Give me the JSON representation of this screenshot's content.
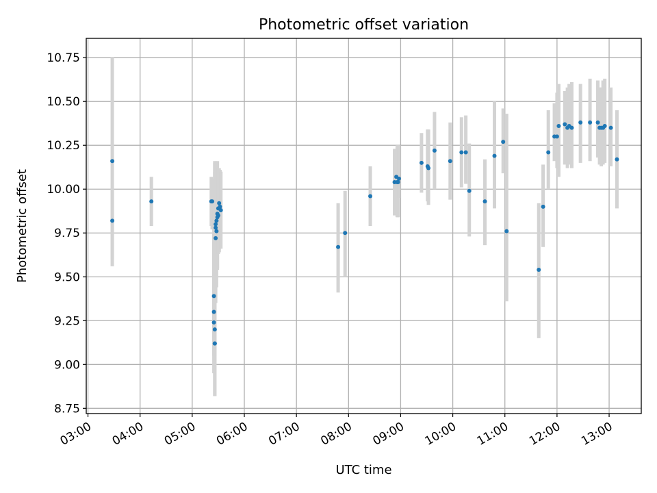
{
  "chart_data": {
    "type": "scatter",
    "title": "Photometric offset variation",
    "xlabel": "UTC time",
    "ylabel": "Photometric offset",
    "x_tick_labels": [
      "03:00",
      "04:00",
      "05:00",
      "06:00",
      "07:00",
      "08:00",
      "09:00",
      "10:00",
      "11:00",
      "12:00",
      "13:00"
    ],
    "y_tick_labels": [
      "8.75",
      "9.00",
      "9.25",
      "9.50",
      "9.75",
      "10.00",
      "10.25",
      "10.50",
      "10.75"
    ],
    "xlim": [
      "02:58",
      "13:37"
    ],
    "ylim": [
      8.72,
      10.86
    ],
    "grid": true,
    "colors": {
      "point": "#1f77b4",
      "errorbar": "#d3d3d3"
    },
    "series": [
      {
        "x": [
          "03:28",
          "03:28",
          "04:13",
          "05:22",
          "05:23",
          "05:25",
          "05:25",
          "05:25",
          "05:26",
          "05:26",
          "05:26",
          "05:27",
          "05:27",
          "05:27",
          "05:28",
          "05:28",
          "05:29",
          "05:29",
          "05:30",
          "05:30",
          "05:31",
          "05:31",
          "05:32",
          "05:33",
          "07:48",
          "07:56",
          "08:25",
          "08:53",
          "08:55",
          "08:56",
          "08:57",
          "08:58",
          "09:24",
          "09:31",
          "09:32",
          "09:39",
          "09:57",
          "10:10",
          "10:15",
          "10:19",
          "10:37",
          "10:48",
          "10:58",
          "11:02",
          "11:39",
          "11:44",
          "11:50",
          "11:57",
          "12:00",
          "12:02",
          "12:09",
          "12:12",
          "12:14",
          "12:17",
          "12:27",
          "12:38",
          "12:47",
          "12:49",
          "12:51",
          "12:53",
          "12:55",
          "13:02",
          "13:09"
        ],
        "y": [
          10.16,
          9.82,
          9.93,
          9.93,
          9.93,
          9.39,
          9.3,
          9.24,
          9.2,
          9.12,
          9.12,
          9.72,
          9.78,
          9.8,
          9.76,
          9.82,
          9.84,
          9.86,
          9.85,
          9.89,
          9.92,
          9.89,
          9.9,
          9.88,
          9.67,
          9.75,
          9.96,
          10.04,
          10.07,
          10.04,
          10.04,
          10.06,
          10.15,
          10.13,
          10.12,
          10.22,
          10.16,
          10.21,
          10.21,
          9.99,
          9.93,
          10.19,
          10.27,
          9.76,
          9.54,
          9.9,
          10.21,
          10.3,
          10.3,
          10.36,
          10.37,
          10.35,
          10.36,
          10.35,
          10.38,
          10.38,
          10.38,
          10.35,
          10.35,
          10.35,
          10.36,
          10.35,
          10.17
        ],
        "yerr_low": [
          9.56,
          9.6,
          9.79,
          9.79,
          9.77,
          8.95,
          9.05,
          9.2,
          9.05,
          8.82,
          8.82,
          9.35,
          9.47,
          9.54,
          9.44,
          9.64,
          9.55,
          9.54,
          9.63,
          9.66,
          9.64,
          9.64,
          9.75,
          9.66,
          9.41,
          9.5,
          9.79,
          9.85,
          9.91,
          9.84,
          9.84,
          9.95,
          9.98,
          9.93,
          9.91,
          10.0,
          9.94,
          10.01,
          10.03,
          9.73,
          9.68,
          9.89,
          10.09,
          9.36,
          9.15,
          9.67,
          10.0,
          10.16,
          10.12,
          10.07,
          10.14,
          10.12,
          10.14,
          10.12,
          10.15,
          10.16,
          10.18,
          10.14,
          10.13,
          10.14,
          10.15,
          10.13,
          9.89
        ],
        "yerr_high": [
          10.75,
          10.0,
          10.07,
          10.07,
          10.06,
          9.75,
          9.7,
          9.88,
          10.1,
          10.15,
          10.16,
          10.02,
          10.03,
          10.04,
          10.06,
          10.07,
          10.09,
          10.16,
          10.11,
          10.12,
          10.1,
          10.12,
          10.11,
          10.1,
          9.92,
          9.99,
          10.13,
          10.23,
          10.23,
          10.25,
          10.25,
          10.25,
          10.32,
          10.34,
          10.34,
          10.44,
          10.38,
          10.41,
          10.42,
          10.26,
          10.17,
          10.5,
          10.46,
          10.43,
          9.92,
          10.14,
          10.45,
          10.49,
          10.55,
          10.6,
          10.56,
          10.58,
          10.6,
          10.61,
          10.6,
          10.63,
          10.62,
          10.58,
          10.58,
          10.62,
          10.63,
          10.58,
          10.45
        ]
      }
    ]
  }
}
